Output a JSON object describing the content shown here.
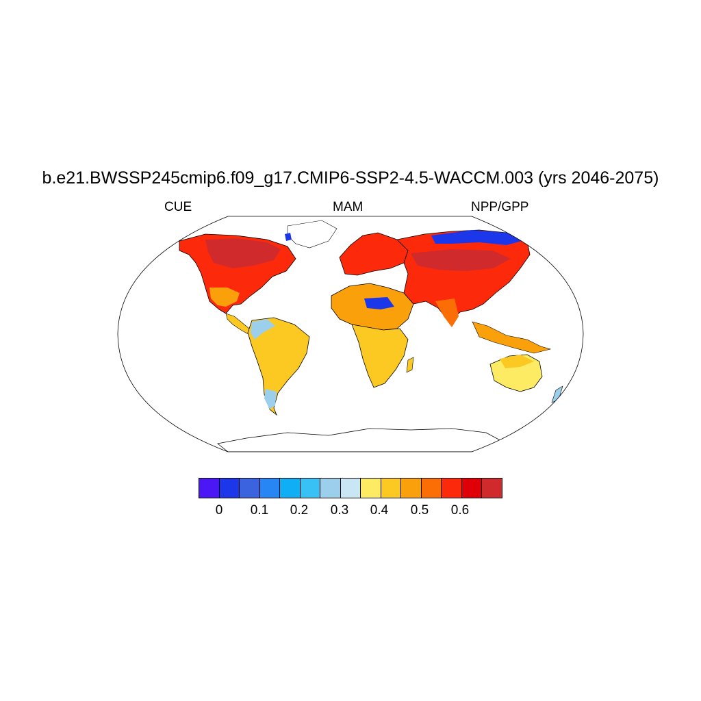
{
  "title": "b.e21.BWSSP245cmip6.f09_g17.CMIP6-SSP2-4.5-WACCM.003 (yrs 2046-2075)",
  "label_left": "CUE",
  "label_center": "MAM",
  "label_right": "NPP/GPP",
  "map": {
    "projection": "Robinson-like",
    "variable": "CUE",
    "season": "MAM"
  },
  "colorbar": {
    "colors": [
      "#4b17f5",
      "#1c37ea",
      "#3b62df",
      "#2785f4",
      "#10aef5",
      "#38c1f4",
      "#9ccfec",
      "#c9e6f5",
      "#fdeb64",
      "#fbc921",
      "#f9a00a",
      "#fb6e06",
      "#fc2a0a",
      "#df0007",
      "#d02a2c"
    ],
    "tick_labels": [
      "0",
      "0.1",
      "0.2",
      "0.3",
      "0.4",
      "0.5",
      "0.6"
    ]
  }
}
